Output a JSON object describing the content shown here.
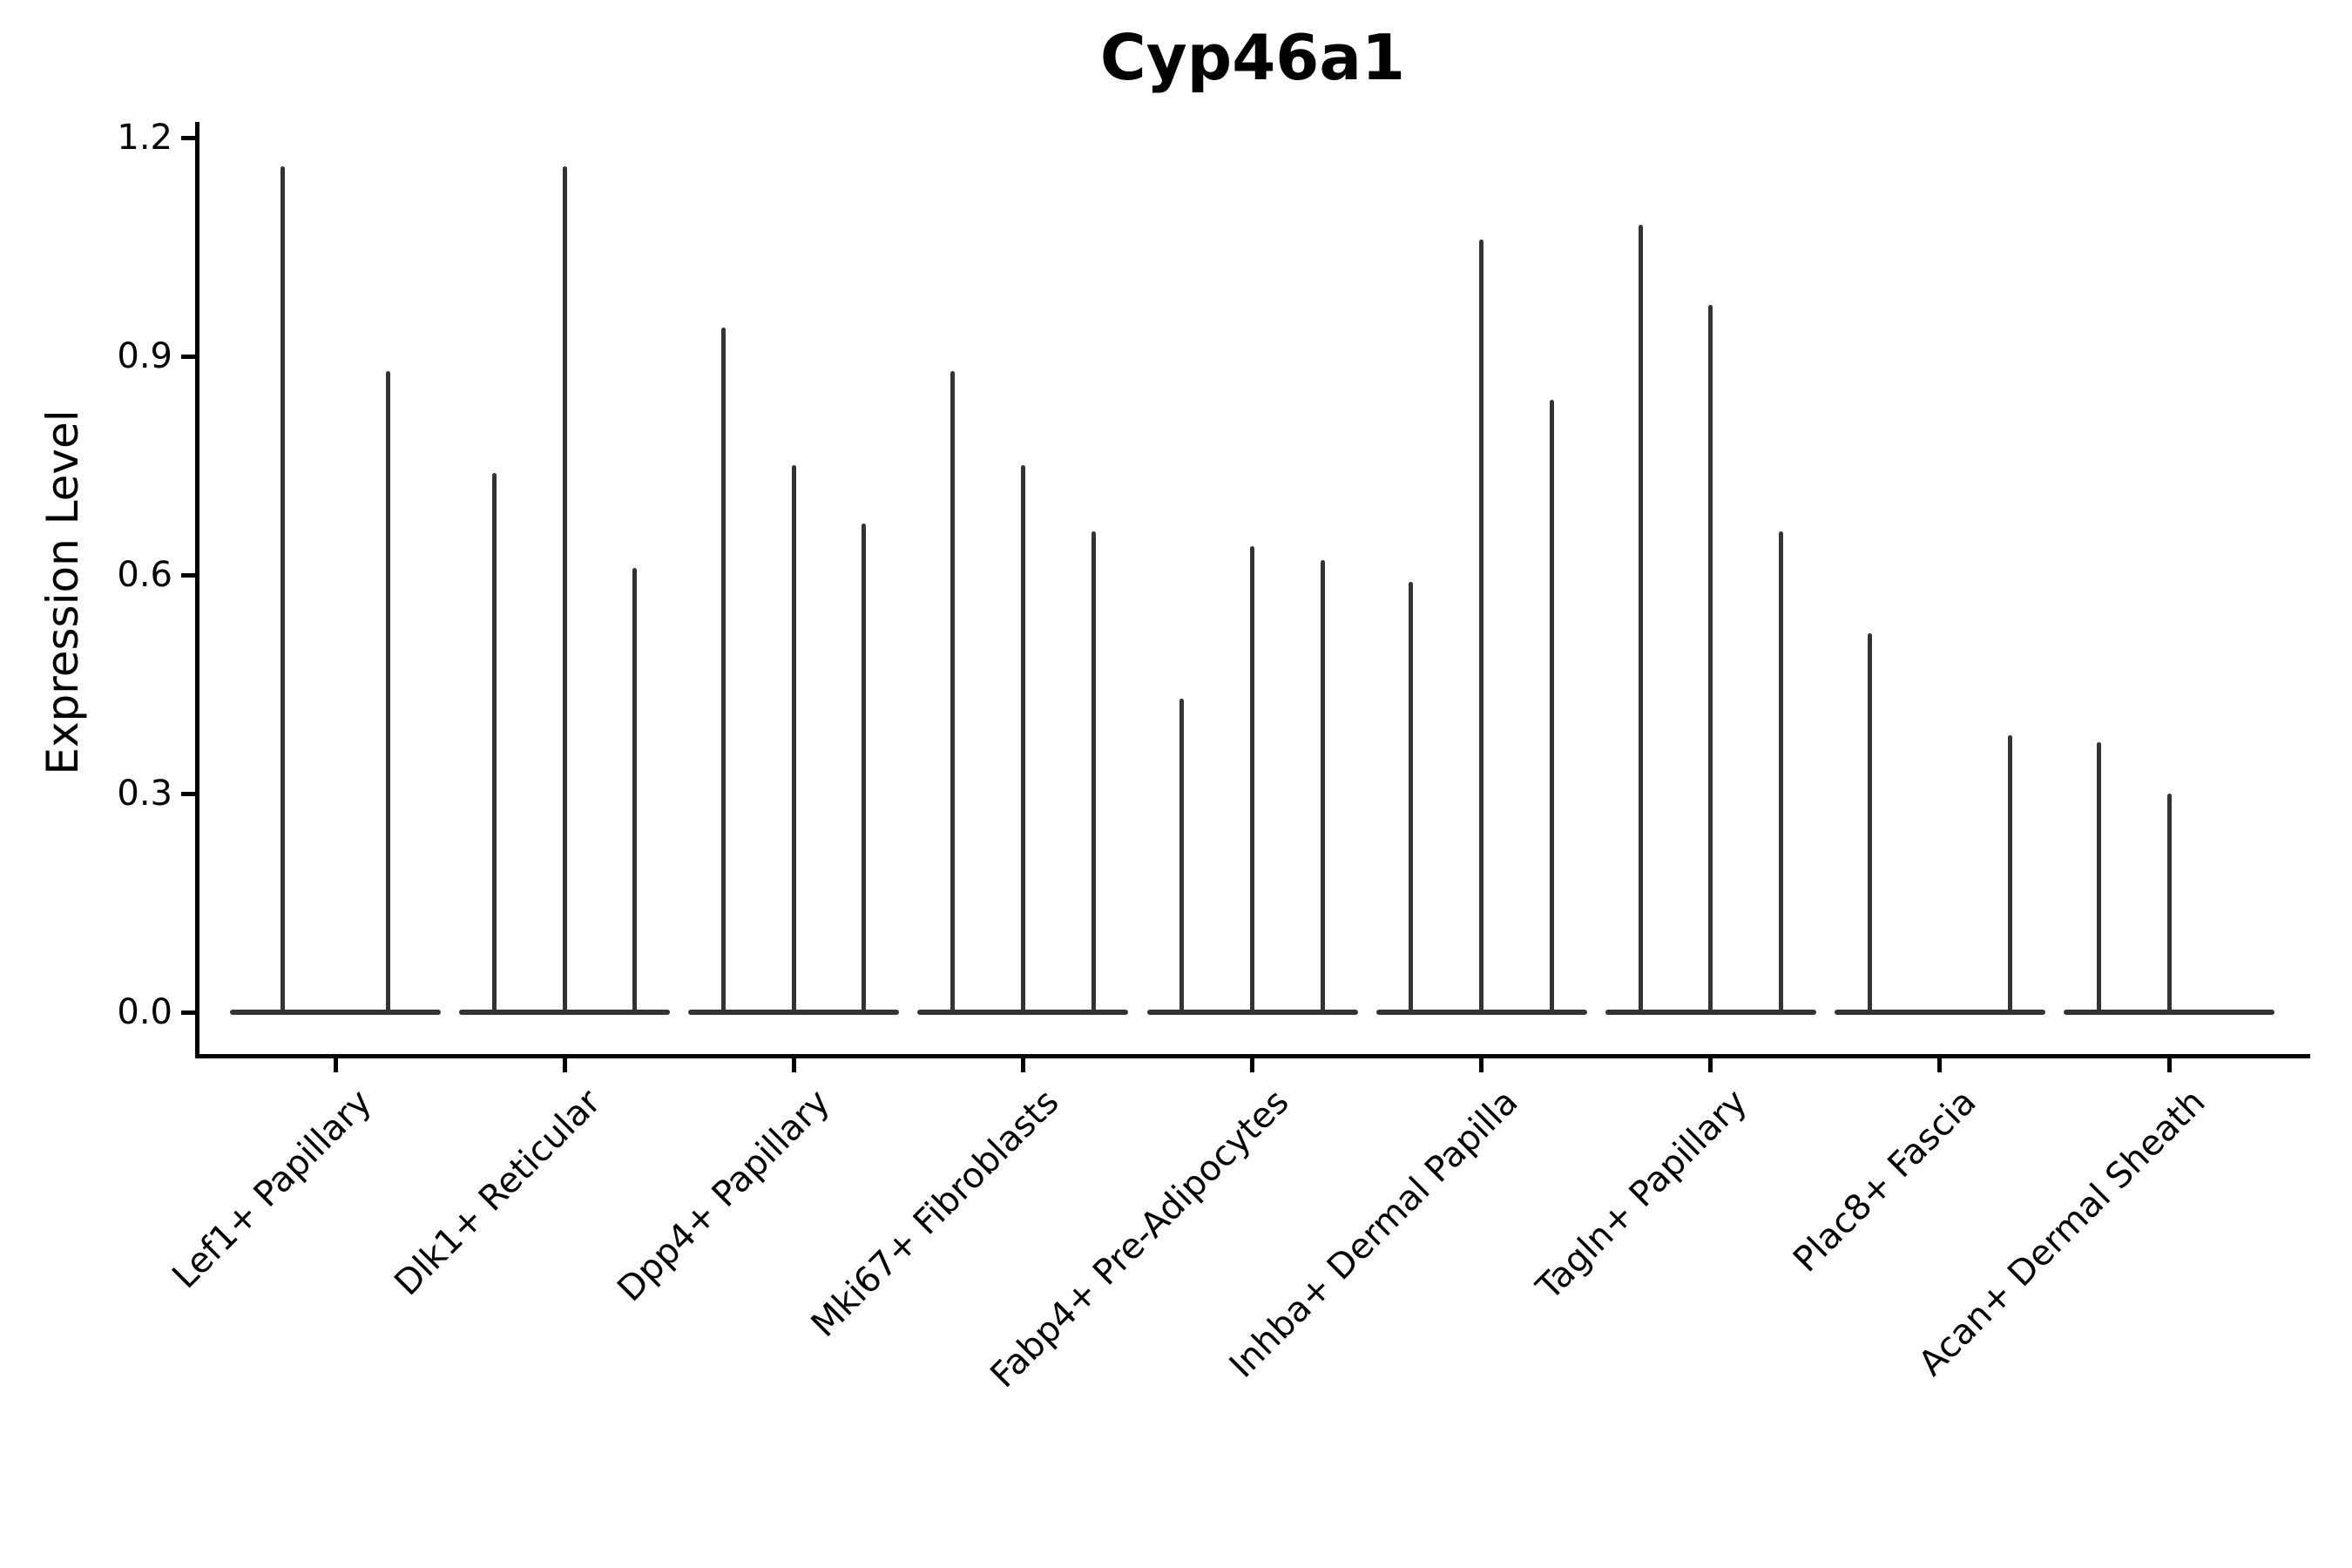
{
  "title": "Cyp46a1",
  "chart_data": {
    "type": "violin",
    "title": "Cyp46a1",
    "ylabel": "Expression Level",
    "xlabel": "",
    "yticks": [
      0.0,
      0.3,
      0.6,
      0.9,
      1.2
    ],
    "yticklabels": [
      "0.0",
      "0.3",
      "0.6",
      "0.9",
      "1.2"
    ],
    "ylim": [
      -0.06,
      1.22
    ],
    "grid": false,
    "legend": "none",
    "categories": [
      "Lef1+ Papillary",
      "Dlk1+ Reticular",
      "Dpp4+ Papillary",
      "Mki67+ Fibroblasts",
      "Fabp4+ Pre-Adipocytes",
      "Inhba+ Dermal Papilla",
      "Tagln+ Papillary",
      "Plac8+ Fascia",
      "Acan+ Dermal Sheath"
    ],
    "series": [
      {
        "category": "Lef1+ Papillary",
        "violin_maxima": [
          1.16,
          0.88
        ]
      },
      {
        "category": "Dlk1+ Reticular",
        "violin_maxima": [
          0.74,
          1.16,
          0.61
        ]
      },
      {
        "category": "Dpp4+ Papillary",
        "violin_maxima": [
          0.94,
          0.75,
          0.67
        ]
      },
      {
        "category": "Mki67+ Fibroblasts",
        "violin_maxima": [
          0.88,
          0.75,
          0.66
        ]
      },
      {
        "category": "Fabp4+ Pre-Adipocytes",
        "violin_maxima": [
          0.43,
          0.64,
          0.62
        ]
      },
      {
        "category": "Inhba+ Dermal Papilla",
        "violin_maxima": [
          0.59,
          1.06,
          0.84
        ]
      },
      {
        "category": "Tagln+ Papillary",
        "violin_maxima": [
          1.08,
          0.97,
          0.66
        ]
      },
      {
        "category": "Plac8+ Fascia",
        "violin_maxima": [
          0.52,
          0.0,
          0.38
        ]
      },
      {
        "category": "Acan+ Dermal Sheath",
        "violin_maxima": [
          0.37,
          0.3,
          0.0
        ]
      }
    ],
    "colors": {
      "violin": "#333333",
      "axis": "#000000",
      "background": "#ffffff"
    }
  }
}
